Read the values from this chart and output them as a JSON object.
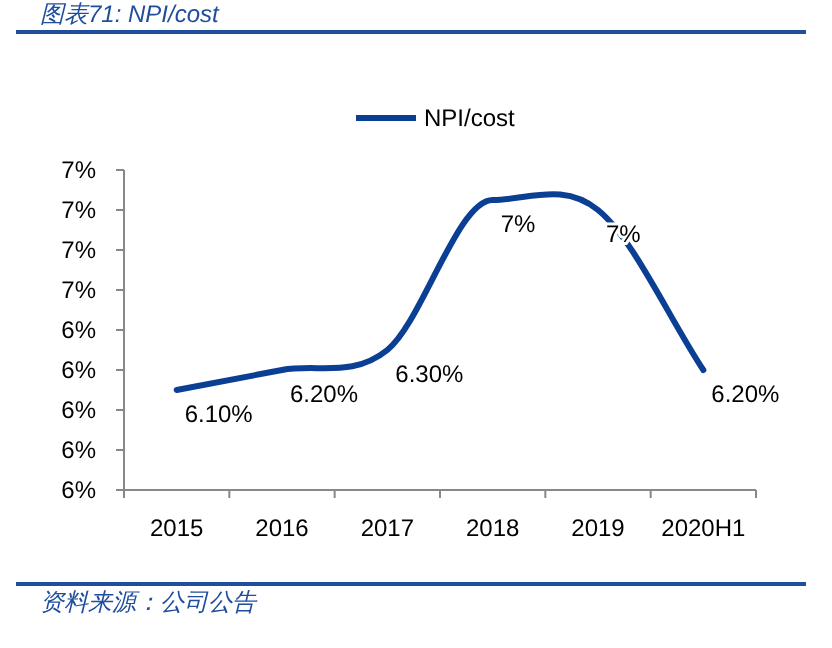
{
  "chart_data": {
    "type": "line",
    "title": "图表71:  NPI/cost",
    "categories": [
      "2015",
      "2016",
      "2017",
      "2018",
      "2019",
      "2020H1"
    ],
    "series": [
      {
        "name": "NPI/cost",
        "color": "#0b3f94",
        "values": [
          6.1,
          6.2,
          6.3,
          7.05,
          7.0,
          6.2
        ]
      }
    ],
    "value_labels": [
      "6.10%",
      "6.20%",
      "6.30%",
      "7%",
      "7%",
      "6.20%"
    ],
    "ylim": [
      5.6,
      7.2
    ],
    "yticks": [
      {
        "value": 5.6,
        "label": "6%"
      },
      {
        "value": 5.8,
        "label": "6%"
      },
      {
        "value": 6.0,
        "label": "6%"
      },
      {
        "value": 6.2,
        "label": "6%"
      },
      {
        "value": 6.4,
        "label": "6%"
      },
      {
        "value": 6.6,
        "label": "7%"
      },
      {
        "value": 6.8,
        "label": "7%"
      },
      {
        "value": 7.0,
        "label": "7%"
      },
      {
        "value": 7.2,
        "label": "7%"
      }
    ],
    "legend": "top",
    "grid": false,
    "marker": "none",
    "line_style": "solid",
    "annotations": [
      "资料来源：公司公告"
    ]
  }
}
